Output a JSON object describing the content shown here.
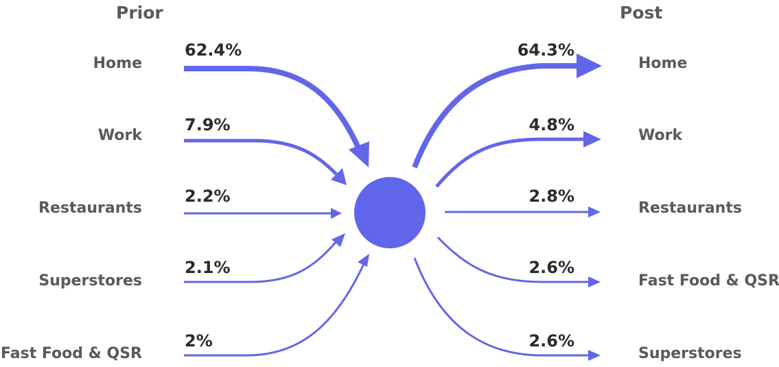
{
  "headings": {
    "prior": "Prior",
    "post": "Post"
  },
  "prior": [
    {
      "label": "Home",
      "percent": "62.4%"
    },
    {
      "label": "Work",
      "percent": "7.9%"
    },
    {
      "label": "Restaurants",
      "percent": "2.2%"
    },
    {
      "label": "Superstores",
      "percent": "2.1%"
    },
    {
      "label": "Fast Food & QSR",
      "percent": "2%"
    }
  ],
  "post": [
    {
      "label": "Home",
      "percent": "64.3%"
    },
    {
      "label": "Work",
      "percent": "4.8%"
    },
    {
      "label": "Restaurants",
      "percent": "2.8%"
    },
    {
      "label": "Fast Food & QSR",
      "percent": "2.6%"
    },
    {
      "label": "Superstores",
      "percent": "2.6%"
    }
  ],
  "colors": {
    "flow": "#6366e8",
    "hub": "#5f66e9",
    "label": "#5a5a5a",
    "percent": "#2b2b2b"
  }
}
